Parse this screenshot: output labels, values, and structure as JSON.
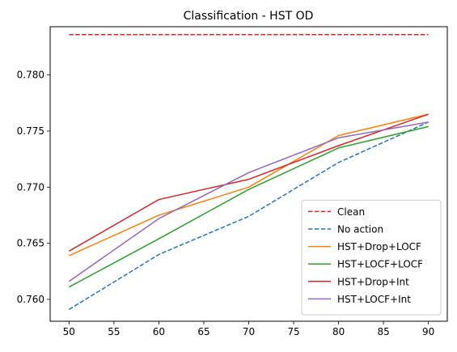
{
  "chart_data": {
    "type": "line",
    "title": "Classification - HST OD",
    "xlabel": "",
    "ylabel": "",
    "x": [
      50,
      60,
      70,
      80,
      90
    ],
    "xticks": [
      "50",
      "55",
      "60",
      "65",
      "70",
      "75",
      "80",
      "85",
      "90"
    ],
    "yticks": [
      "0.760",
      "0.765",
      "0.770",
      "0.775",
      "0.780"
    ],
    "xlim": [
      47.9,
      92.1
    ],
    "ylim": [
      0.75805,
      0.7843
    ],
    "grid": false,
    "legend_position": "lower-right",
    "series": [
      {
        "name": "Clean",
        "color": "#d62728",
        "dashed": true,
        "values": [
          0.7836,
          0.7836,
          0.7836,
          0.7836,
          0.7836
        ]
      },
      {
        "name": "No action",
        "color": "#1f77b4",
        "dashed": true,
        "values": [
          0.7591,
          0.764,
          0.7674,
          0.7722,
          0.7758
        ]
      },
      {
        "name": "HST+Drop+LOCF",
        "color": "#ff7f0e",
        "dashed": false,
        "values": [
          0.7639,
          0.7675,
          0.77,
          0.7746,
          0.7765
        ]
      },
      {
        "name": "HST+LOCF+LOCF",
        "color": "#2ca02c",
        "dashed": false,
        "values": [
          0.7611,
          0.7654,
          0.7698,
          0.7735,
          0.7754
        ]
      },
      {
        "name": "HST+Drop+Int",
        "color": "#d62728",
        "dashed": false,
        "values": [
          0.7643,
          0.7689,
          0.7707,
          0.7737,
          0.7765
        ]
      },
      {
        "name": "HST+LOCF+Int",
        "color": "#9467bd",
        "dashed": false,
        "values": [
          0.7616,
          0.7672,
          0.7713,
          0.7744,
          0.7758
        ]
      }
    ]
  }
}
